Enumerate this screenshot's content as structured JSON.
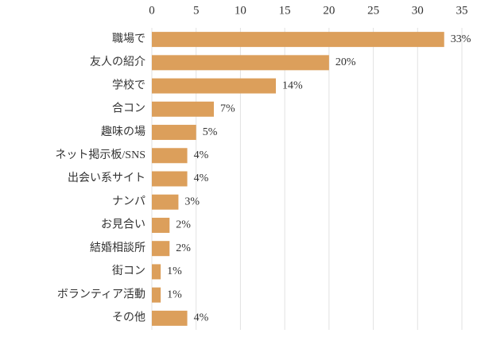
{
  "chart_data": {
    "type": "hbar",
    "categories": [
      "職場で",
      "友人の紹介",
      "学校で",
      "合コン",
      "趣味の場",
      "ネット掲示板/SNS",
      "出会い系サイト",
      "ナンパ",
      "お見合い",
      "結婚相談所",
      "街コン",
      "ボランティア活動",
      "その他"
    ],
    "values": [
      33,
      20,
      14,
      7,
      5,
      4,
      4,
      3,
      2,
      2,
      1,
      1,
      4
    ],
    "value_labels": [
      "33%",
      "20%",
      "14%",
      "7%",
      "5%",
      "4%",
      "4%",
      "3%",
      "2%",
      "2%",
      "1%",
      "1%",
      "4%"
    ],
    "color": "#dc9f5b",
    "xlim": [
      0,
      35
    ],
    "xticks": [
      0,
      5,
      10,
      15,
      20,
      25,
      30,
      35
    ],
    "grid": true
  }
}
